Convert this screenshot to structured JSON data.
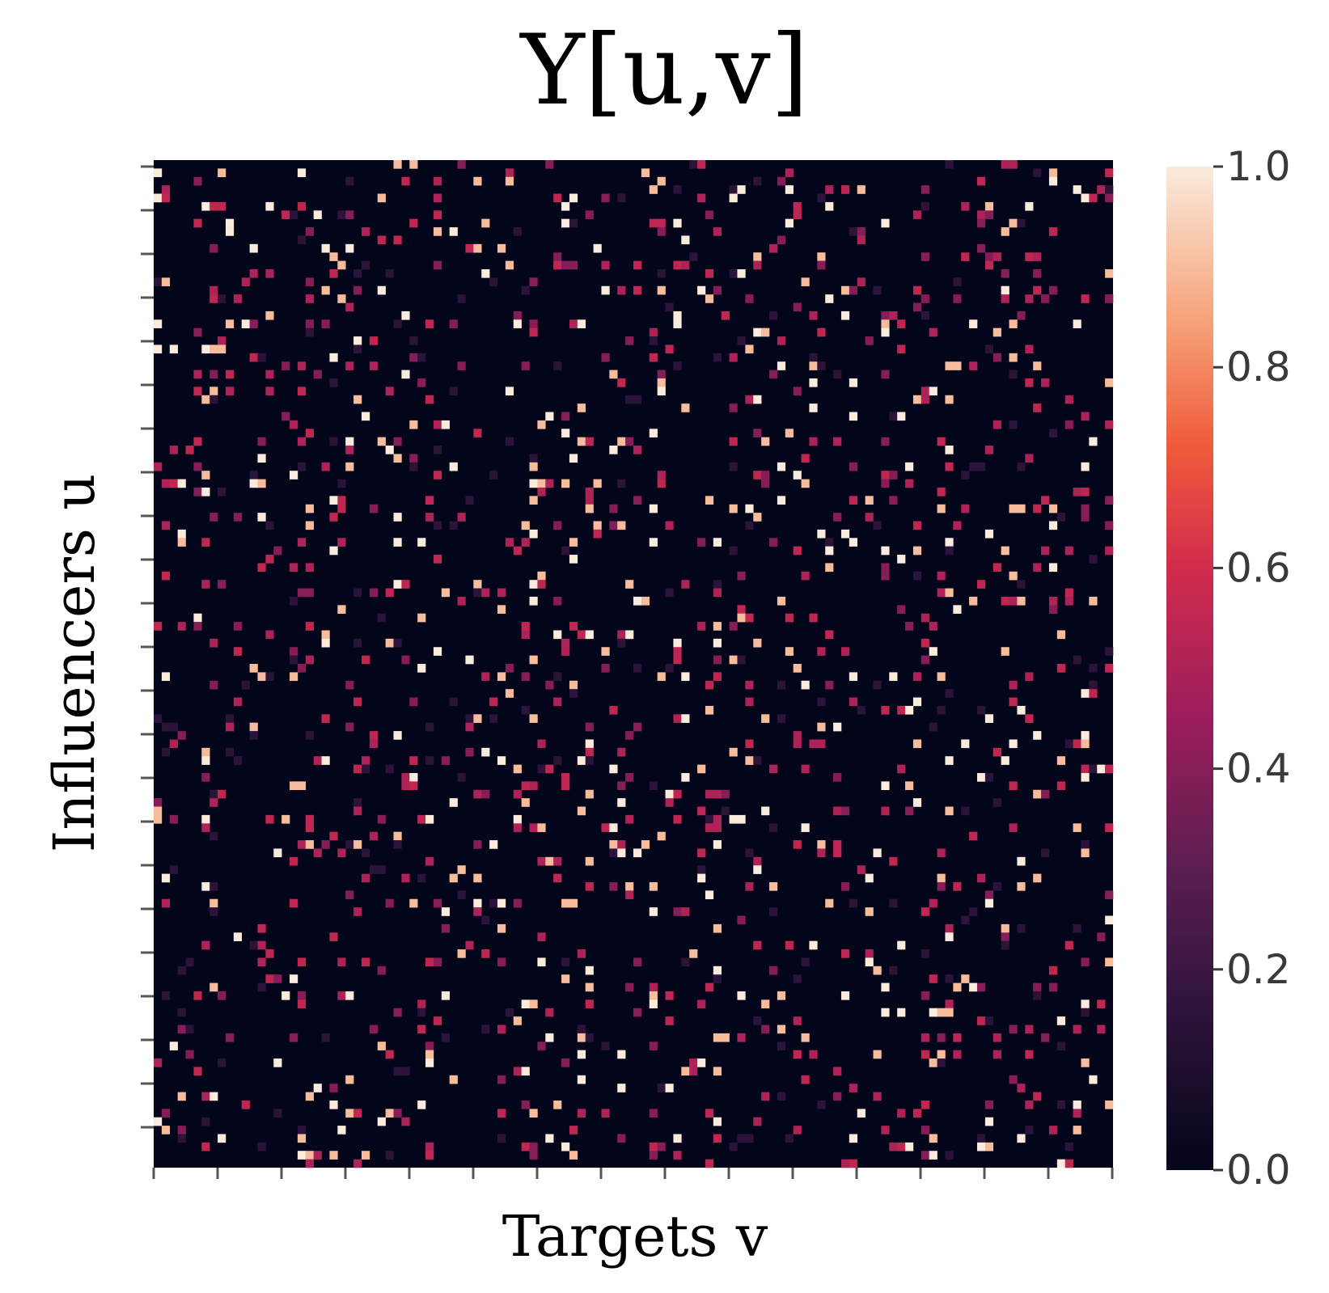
{
  "chart_data": {
    "type": "heatmap",
    "title": "Y[u,v]",
    "xlabel": "Targets v",
    "ylabel": "Influencers u",
    "rows": 120,
    "cols": 120,
    "xtick_count": 16,
    "ytick_count": 23,
    "colorbar": {
      "colormap": "rocket",
      "range": [
        0.0,
        1.0
      ],
      "ticks": [
        "0.0",
        "0.2",
        "0.4",
        "0.6",
        "0.8",
        "1.0"
      ]
    },
    "value_distribution": {
      "background": 0.0,
      "sparse_fraction_nonzero": 0.09,
      "typical_nonzero_values": [
        0.15,
        0.4,
        0.5,
        0.55,
        0.9,
        1.0
      ]
    }
  }
}
